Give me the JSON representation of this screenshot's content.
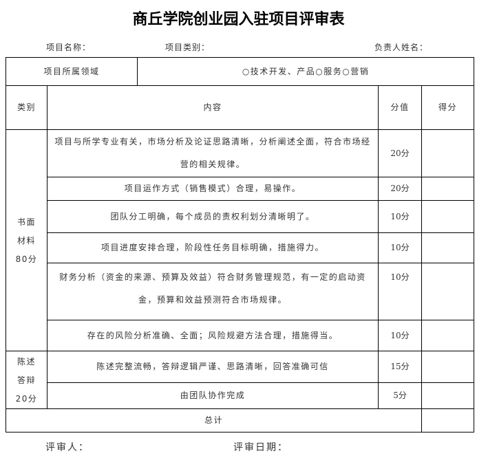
{
  "title": "商丘学院创业园入驻项目评审表",
  "meta": {
    "project_name": "项目名称：",
    "project_type": "项目类别：",
    "leader": "负责人姓名："
  },
  "domain_row": {
    "label": "项目所属领域",
    "options": "○技术开发、产品○服务○营销"
  },
  "headers": {
    "category": "类别",
    "content": "内容",
    "value": "分值",
    "score": "得分"
  },
  "groups": [
    {
      "category_lines": [
        "书面",
        "材料",
        "80分"
      ],
      "items": [
        {
          "content": "项目与所学专业有关，市场分析及论证思路清晰，分析阐述全面，符合市场经营的相关规律。",
          "value": "20分"
        },
        {
          "content": "项目运作方式（销售模式）合理，易操作。",
          "value": "20分"
        },
        {
          "content": "团队分工明确，每个成员的责权利划分清晰明了。",
          "value": "10分"
        },
        {
          "content": "项目进度安排合理，阶段性任务目标明确，措施得力。",
          "value": "10分"
        },
        {
          "content": "财务分析（资金的来源、预算及效益）符合财务管理规范，有一定的启动资金，预算和效益预测符合市场规律。",
          "value": "10分"
        },
        {
          "content": "存在的风险分析准确、全面；风险规避方法合理，措施得当。",
          "value": "10分"
        }
      ]
    },
    {
      "category_lines": [
        "陈述",
        "答辩",
        "20分"
      ],
      "items": [
        {
          "content": "陈述完整流畅，答辩逻辑严谨、思路清晰，回答准确可信",
          "value": "15分"
        },
        {
          "content": "由团队协作完成",
          "value": "5分"
        }
      ]
    }
  ],
  "total_label": "总计",
  "footer": {
    "reviewer": "评审人：",
    "date": "评审日期："
  }
}
